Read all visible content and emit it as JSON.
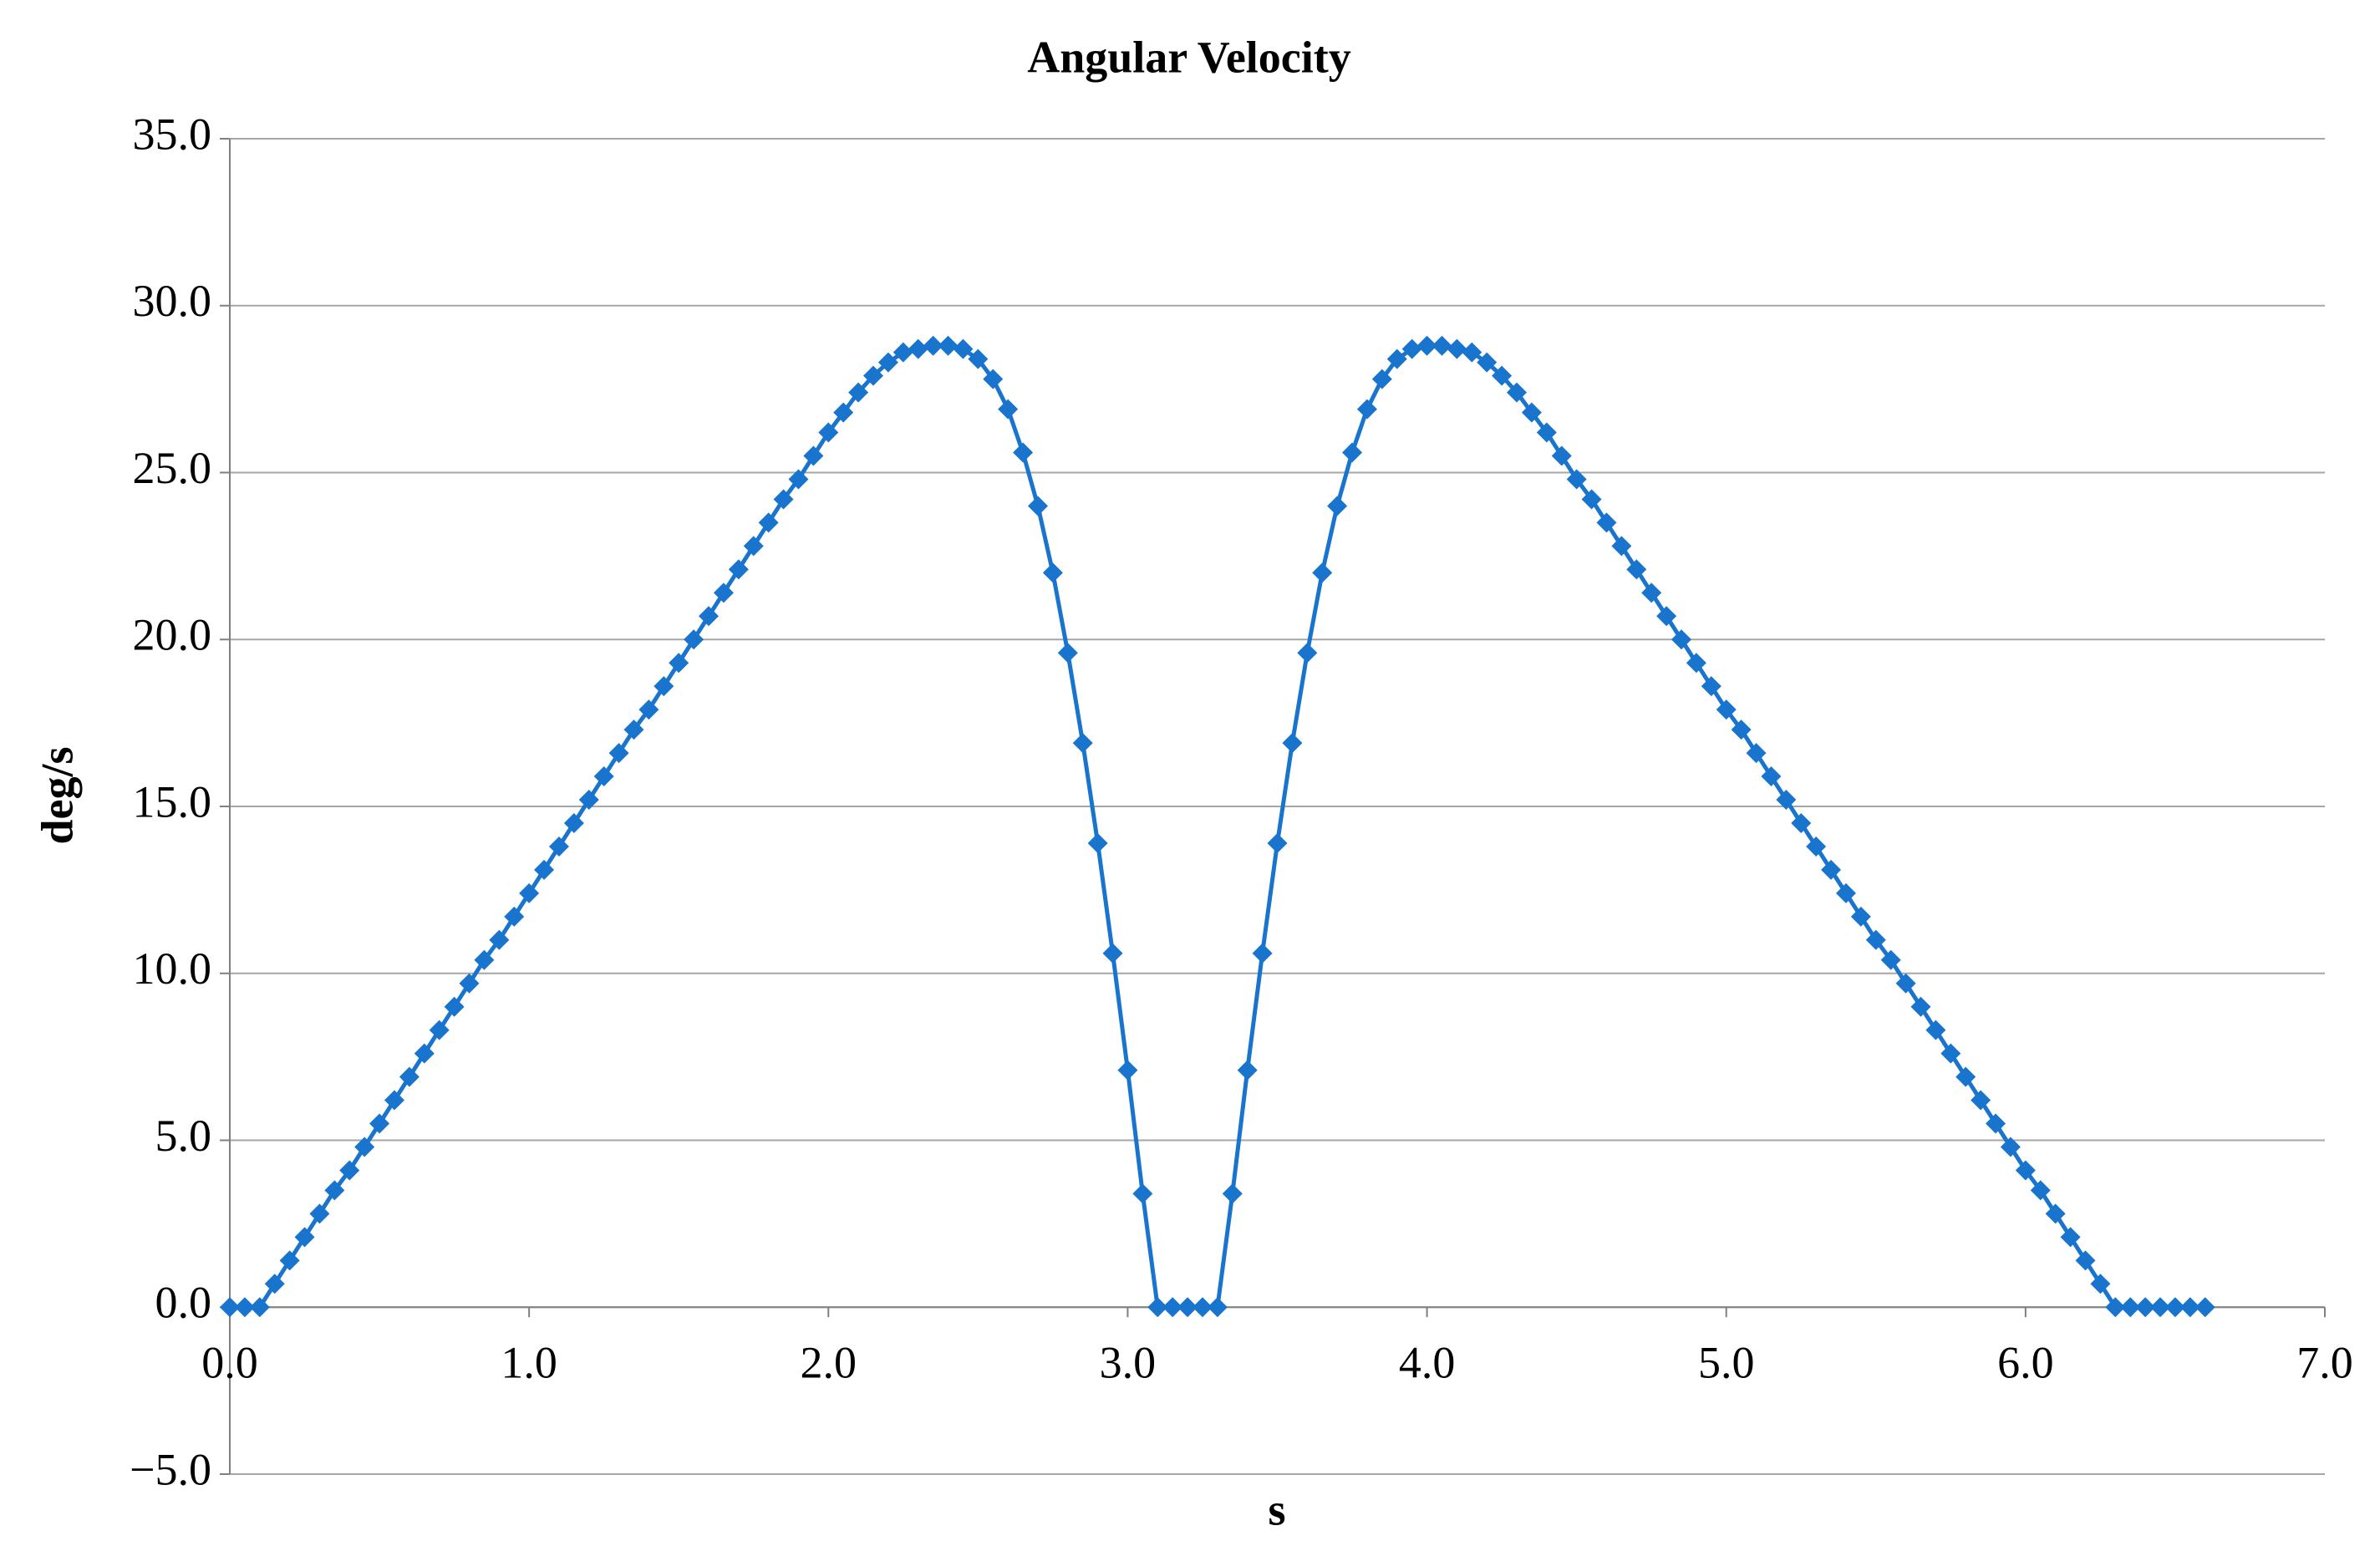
{
  "chart_data": {
    "type": "line",
    "title": "Angular Velocity",
    "x_label": "s",
    "y_label": "deg/s",
    "x": [
      0,
      0.05,
      0.1,
      0.15,
      0.2,
      0.25,
      0.3,
      0.35,
      0.4,
      0.45,
      0.5,
      0.55,
      0.6,
      0.65,
      0.7,
      0.75,
      0.8,
      0.85,
      0.9,
      0.95,
      1.0,
      1.05,
      1.1,
      1.15,
      1.2,
      1.25,
      1.3,
      1.35,
      1.4,
      1.45,
      1.5,
      1.55,
      1.6,
      1.65,
      1.7,
      1.75,
      1.8,
      1.85,
      1.9,
      1.95,
      2.0,
      2.05,
      2.1,
      2.15,
      2.2,
      2.25,
      2.3,
      2.35,
      2.4,
      2.45,
      2.5,
      2.55,
      2.6,
      2.65,
      2.7,
      2.75,
      2.8,
      2.85,
      2.9,
      2.95,
      3.0,
      3.05,
      3.1,
      3.15,
      3.2,
      3.25,
      3.3,
      3.35,
      3.4,
      3.45,
      3.5,
      3.55,
      3.6,
      3.65,
      3.7,
      3.75,
      3.8,
      3.85,
      3.9,
      3.95,
      4.0,
      4.05,
      4.1,
      4.15,
      4.2,
      4.25,
      4.3,
      4.35,
      4.4,
      4.45,
      4.5,
      4.55,
      4.6,
      4.65,
      4.7,
      4.75,
      4.8,
      4.85,
      4.9,
      4.95,
      5.0,
      5.05,
      5.1,
      5.15,
      5.2,
      5.25,
      5.3,
      5.35,
      5.4,
      5.45,
      5.5,
      5.55,
      5.6,
      5.65,
      5.7,
      5.75,
      5.8,
      5.85,
      5.9,
      5.95,
      6.0,
      6.05,
      6.1,
      6.15,
      6.2,
      6.25,
      6.3,
      6.35,
      6.4,
      6.45,
      6.5,
      6.55,
      6.6
    ],
    "series": [
      {
        "color": "#1874cd",
        "values": [
          0,
          0,
          0,
          0.7,
          1.4,
          2.1,
          2.8,
          3.5,
          4.1,
          4.8,
          5.5,
          6.2,
          6.9,
          7.6,
          8.3,
          9.0,
          9.7,
          10.4,
          11.0,
          11.7,
          12.4,
          13.1,
          13.8,
          14.5,
          15.2,
          15.9,
          16.6,
          17.3,
          17.9,
          18.6,
          19.3,
          20.0,
          20.7,
          21.4,
          22.1,
          22.8,
          23.5,
          24.2,
          24.8,
          25.5,
          26.2,
          26.8,
          27.4,
          27.9,
          28.3,
          28.6,
          28.7,
          28.8,
          28.8,
          28.7,
          28.4,
          27.8,
          26.9,
          25.6,
          24.0,
          22.0,
          19.6,
          16.9,
          13.9,
          10.6,
          7.1,
          3.4,
          0,
          0,
          0,
          0,
          0,
          3.4,
          7.1,
          10.6,
          13.9,
          16.9,
          19.6,
          22.0,
          24.0,
          25.6,
          26.9,
          27.8,
          28.4,
          28.7,
          28.8,
          28.8,
          28.7,
          28.6,
          28.3,
          27.9,
          27.4,
          26.8,
          26.2,
          25.5,
          24.8,
          24.2,
          23.5,
          22.8,
          22.1,
          21.4,
          20.7,
          20.0,
          19.3,
          18.6,
          17.9,
          17.3,
          16.6,
          15.9,
          15.2,
          14.5,
          13.8,
          13.1,
          12.4,
          11.7,
          11.0,
          10.4,
          9.7,
          9.0,
          8.3,
          7.6,
          6.9,
          6.2,
          5.5,
          4.8,
          4.1,
          3.5,
          2.8,
          2.1,
          1.4,
          0.7,
          0,
          0,
          0,
          0,
          0,
          0,
          0
        ]
      }
    ],
    "xlim": [
      0,
      7
    ],
    "ylim": [
      -5,
      35
    ],
    "xticks": [
      {
        "value": 0,
        "label": "0.0"
      },
      {
        "value": 1,
        "label": "1.0"
      },
      {
        "value": 2,
        "label": "2.0"
      },
      {
        "value": 3,
        "label": "3.0"
      },
      {
        "value": 4,
        "label": "4.0"
      },
      {
        "value": 5,
        "label": "5.0"
      },
      {
        "value": 6,
        "label": "6.0"
      },
      {
        "value": 7,
        "label": "7.0"
      }
    ],
    "yticks": [
      {
        "value": -5,
        "label": "−5.0"
      },
      {
        "value": 0,
        "label": "0.0"
      },
      {
        "value": 5,
        "label": "5.0"
      },
      {
        "value": 10,
        "label": "10.0"
      },
      {
        "value": 15,
        "label": "15.0"
      },
      {
        "value": 20,
        "label": "20.0"
      },
      {
        "value": 25,
        "label": "25.0"
      },
      {
        "value": 30,
        "label": "30.0"
      },
      {
        "value": 35,
        "label": "35.0"
      }
    ],
    "grid": true
  }
}
